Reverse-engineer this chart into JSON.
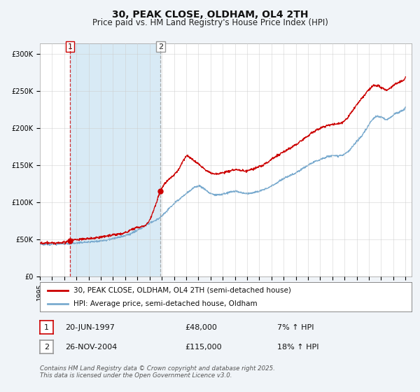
{
  "title": "30, PEAK CLOSE, OLDHAM, OL4 2TH",
  "subtitle": "Price paid vs. HM Land Registry's House Price Index (HPI)",
  "ylabel_ticks": [
    "£0",
    "£50K",
    "£100K",
    "£150K",
    "£200K",
    "£250K",
    "£300K"
  ],
  "ytick_values": [
    0,
    50000,
    100000,
    150000,
    200000,
    250000,
    300000
  ],
  "ylim": [
    0,
    315000
  ],
  "xlim_start": 1995.0,
  "xlim_end": 2025.5,
  "xticks": [
    1995,
    1996,
    1997,
    1998,
    1999,
    2000,
    2001,
    2002,
    2003,
    2004,
    2005,
    2006,
    2007,
    2008,
    2009,
    2010,
    2011,
    2012,
    2013,
    2014,
    2015,
    2016,
    2017,
    2018,
    2019,
    2020,
    2021,
    2022,
    2023,
    2024,
    2025
  ],
  "purchase1_x": 1997.47,
  "purchase1_y": 48000,
  "purchase1_label": "1",
  "purchase2_x": 2004.9,
  "purchase2_y": 115000,
  "purchase2_label": "2",
  "red_line_color": "#cc0000",
  "blue_line_color": "#7aabcf",
  "purchase_marker_color": "#cc0000",
  "dashed1_color": "#cc0000",
  "dashed2_color": "#999999",
  "highlight_color": "#d8eaf5",
  "background_color": "#f0f4f8",
  "plot_bg_color": "#ffffff",
  "grid_color": "#cccccc",
  "legend_label_red": "30, PEAK CLOSE, OLDHAM, OL4 2TH (semi-detached house)",
  "legend_label_blue": "HPI: Average price, semi-detached house, Oldham",
  "annotation1_date": "20-JUN-1997",
  "annotation1_price": "£48,000",
  "annotation1_hpi": "7% ↑ HPI",
  "annotation2_date": "26-NOV-2004",
  "annotation2_price": "£115,000",
  "annotation2_hpi": "18% ↑ HPI",
  "footer": "Contains HM Land Registry data © Crown copyright and database right 2025.\nThis data is licensed under the Open Government Licence v3.0.",
  "title_fontsize": 10,
  "subtitle_fontsize": 8.5,
  "tick_fontsize": 7,
  "legend_fontsize": 7.5,
  "annotation_fontsize": 8
}
